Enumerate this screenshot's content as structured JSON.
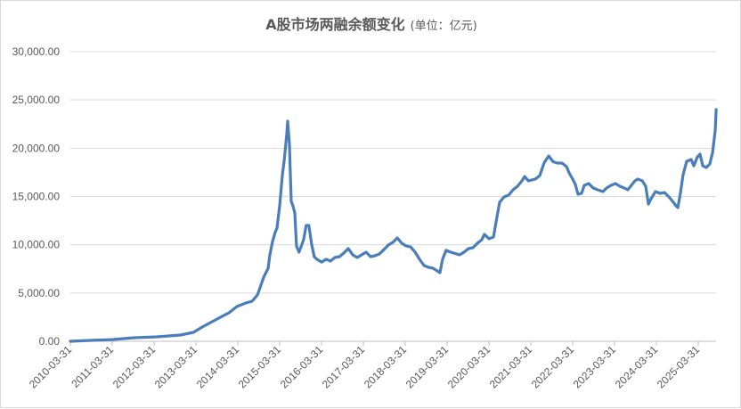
{
  "chart_data": {
    "type": "line",
    "title": "A股市场两融余额变化",
    "subtitle": "(单位：亿元)",
    "xlabel": "",
    "ylabel": "",
    "ylim": [
      0,
      30000
    ],
    "xlim": [
      "2010-03-31",
      "2025-09-03"
    ],
    "yticks": [
      "0.00",
      "5,000.00",
      "10,000.00",
      "15,000.00",
      "20,000.00",
      "25,000.00",
      "30,000.00"
    ],
    "xticks": [
      "2010-03-31",
      "2011-03-31",
      "2012-03-31",
      "2013-03-31",
      "2014-03-31",
      "2015-03-31",
      "2016-03-31",
      "2017-03-31",
      "2018-03-31",
      "2019-03-31",
      "2020-03-31",
      "2021-03-31",
      "2022-03-31",
      "2023-03-31",
      "2024-03-31",
      "2025-03-31"
    ],
    "grid": true,
    "legend": "none",
    "line_color": "#4a7ebb",
    "series": [
      {
        "x": [
          "2010-03-31",
          "2010-09-19",
          "2011-03-31",
          "2011-10-10",
          "2012-04-25",
          "2012-11-15",
          "2013-03-08",
          "2013-05-25",
          "2013-09-19",
          "2014-01-13",
          "2014-03-23",
          "2014-06-10",
          "2014-08-03",
          "2014-09-19",
          "2014-11-12",
          "2014-12-21",
          "2015-01-05",
          "2015-01-28",
          "2015-02-20",
          "2015-03-08",
          "2015-03-31",
          "2015-04-24",
          "2015-05-09",
          "2015-06-01",
          "2015-06-09",
          "2015-06-24",
          "2015-07-10",
          "2015-07-25",
          "2015-08-10",
          "2015-08-25",
          "2015-09-17",
          "2015-10-26",
          "2015-11-18",
          "2015-12-11",
          "2016-01-04",
          "2016-01-27",
          "2016-02-19",
          "2016-03-31",
          "2016-05-09",
          "2016-06-17",
          "2016-07-25",
          "2016-09-03",
          "2016-10-11",
          "2016-11-19",
          "2016-12-28",
          "2017-02-05",
          "2017-03-15",
          "2017-04-24",
          "2017-06-01",
          "2017-07-10",
          "2017-08-18",
          "2017-09-26",
          "2017-11-04",
          "2017-12-13",
          "2018-01-21",
          "2018-03-01",
          "2018-04-08",
          "2018-05-17",
          "2018-06-25",
          "2018-08-03",
          "2018-09-11",
          "2018-10-20",
          "2018-11-28",
          "2019-01-05",
          "2019-01-28",
          "2019-02-20",
          "2019-03-23",
          "2019-05-01",
          "2019-07-18",
          "2019-08-26",
          "2019-10-04",
          "2019-11-12",
          "2019-12-21",
          "2020-01-28",
          "2020-02-20",
          "2020-03-31",
          "2020-05-09",
          "2020-06-01",
          "2020-07-02",
          "2020-08-10",
          "2020-09-18",
          "2020-10-27",
          "2020-12-05",
          "2021-01-13",
          "2021-02-05",
          "2021-03-08",
          "2021-05-09",
          "2021-06-17",
          "2021-07-25",
          "2021-09-03",
          "2021-10-11",
          "2021-11-19",
          "2021-12-28",
          "2022-02-05",
          "2022-02-28",
          "2022-03-31",
          "2022-04-23",
          "2022-05-17",
          "2022-06-17",
          "2022-07-10",
          "2022-08-18",
          "2022-09-26",
          "2022-11-04",
          "2022-12-20",
          "2023-01-21",
          "2023-03-01",
          "2023-04-08",
          "2023-05-17",
          "2023-06-25",
          "2023-07-25",
          "2023-08-25",
          "2023-09-26",
          "2023-10-20",
          "2023-11-28",
          "2023-12-28",
          "2024-01-21",
          "2024-02-13",
          "2024-03-23",
          "2024-05-01",
          "2024-06-10",
          "2024-07-18",
          "2024-08-26",
          "2024-09-18",
          "2024-10-04",
          "2024-10-27",
          "2024-11-19",
          "2024-12-20",
          "2025-01-28",
          "2025-02-20",
          "2025-03-23",
          "2025-04-15",
          "2025-05-09",
          "2025-06-09",
          "2025-07-10",
          "2025-08-03",
          "2025-08-26",
          "2025-09-03"
        ],
        "values": [
          0,
          90,
          180,
          370,
          460,
          650,
          920,
          1480,
          2220,
          2950,
          3600,
          3970,
          4150,
          4800,
          6650,
          7570,
          8950,
          10340,
          11260,
          11720,
          14030,
          17260,
          18640,
          21410,
          22800,
          20490,
          14490,
          14030,
          13290,
          9880,
          9230,
          10520,
          12000,
          12000,
          10060,
          8770,
          8490,
          8210,
          8490,
          8310,
          8680,
          8770,
          9140,
          9600,
          8950,
          8680,
          8950,
          9230,
          8770,
          8860,
          9050,
          9510,
          9970,
          10250,
          10710,
          10150,
          9880,
          9780,
          9230,
          8490,
          7850,
          7660,
          7570,
          7290,
          7110,
          8490,
          9420,
          9230,
          8950,
          9230,
          9600,
          9690,
          10150,
          10520,
          11080,
          10620,
          10800,
          12370,
          14400,
          14950,
          15140,
          15690,
          16060,
          16620,
          17080,
          16620,
          16800,
          17170,
          18500,
          19200,
          18600,
          18460,
          18460,
          18090,
          17450,
          16800,
          16250,
          15230,
          15320,
          16150,
          16340,
          15880,
          15690,
          15510,
          15880,
          16150,
          16340,
          16060,
          15880,
          15690,
          16150,
          16620,
          16800,
          16620,
          16060,
          14210,
          14770,
          15510,
          15320,
          15410,
          14950,
          14400,
          14030,
          13850,
          15420,
          17260,
          18640,
          18830,
          18180,
          19100,
          19380,
          18180,
          18000,
          18370,
          19570,
          21870,
          24000
        ]
      }
    ]
  }
}
